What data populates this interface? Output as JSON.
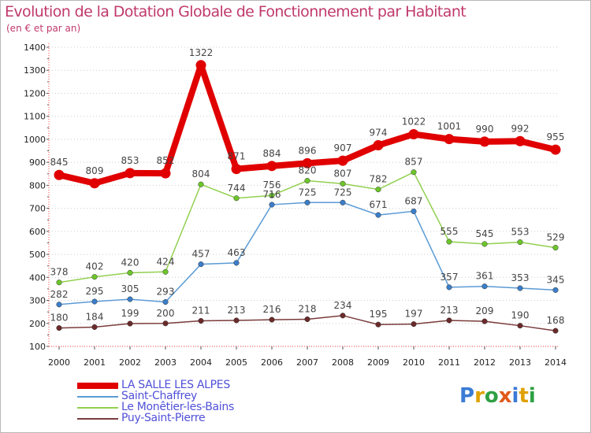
{
  "title": "Evolution de la Dotation Globale de Fonctionnement par Habitant",
  "subtitle": "(en € et par an)",
  "brand": {
    "text": "Proxiti",
    "letters": [
      "P",
      "r",
      "o",
      "x",
      "i",
      "t",
      "i"
    ],
    "colors": [
      "#3a7bd5",
      "#e0a100",
      "#2ea043",
      "#e05a1b",
      "#3a7bd5",
      "#e0a100",
      "#2ea043"
    ]
  },
  "chart_data": {
    "type": "line",
    "title": "Evolution de la Dotation Globale de Fonctionnement par Habitant",
    "subtitle": "(en € et par an)",
    "xlabel": "",
    "ylabel": "",
    "x": [
      2000,
      2001,
      2002,
      2003,
      2004,
      2005,
      2006,
      2007,
      2008,
      2009,
      2010,
      2011,
      2012,
      2013,
      2014
    ],
    "ylim": [
      100,
      1400
    ],
    "yticks": [
      100,
      200,
      300,
      400,
      500,
      600,
      700,
      800,
      900,
      1000,
      1100,
      1200,
      1300,
      1400
    ],
    "grid": "horizontal dotted",
    "legend": "bottom-left",
    "series": [
      {
        "name": "LA SALLE LES ALPES",
        "color": "#e00000",
        "marker": "#e00000",
        "emphasis": true,
        "values": [
          845,
          809,
          853,
          852,
          1322,
          871,
          884,
          896,
          907,
          974,
          1022,
          1001,
          990,
          992,
          955
        ]
      },
      {
        "name": "Saint-Chaffrey",
        "color": "#5b9bd5",
        "marker": "#3b7ec9",
        "values": [
          282,
          295,
          305,
          293,
          457,
          463,
          716,
          725,
          725,
          671,
          687,
          357,
          361,
          353,
          345
        ]
      },
      {
        "name": "Le Monêtier-les-Bains",
        "color": "#92d050",
        "marker": "#6cc62a",
        "values": [
          378,
          402,
          420,
          424,
          804,
          744,
          756,
          820,
          807,
          782,
          857,
          555,
          545,
          553,
          529
        ]
      },
      {
        "name": "Puy-Saint-Pierre",
        "color": "#7a3b3b",
        "marker": "#6b2a2a",
        "values": [
          180,
          184,
          199,
          200,
          211,
          213,
          216,
          218,
          234,
          195,
          197,
          213,
          209,
          190,
          168
        ]
      }
    ]
  }
}
